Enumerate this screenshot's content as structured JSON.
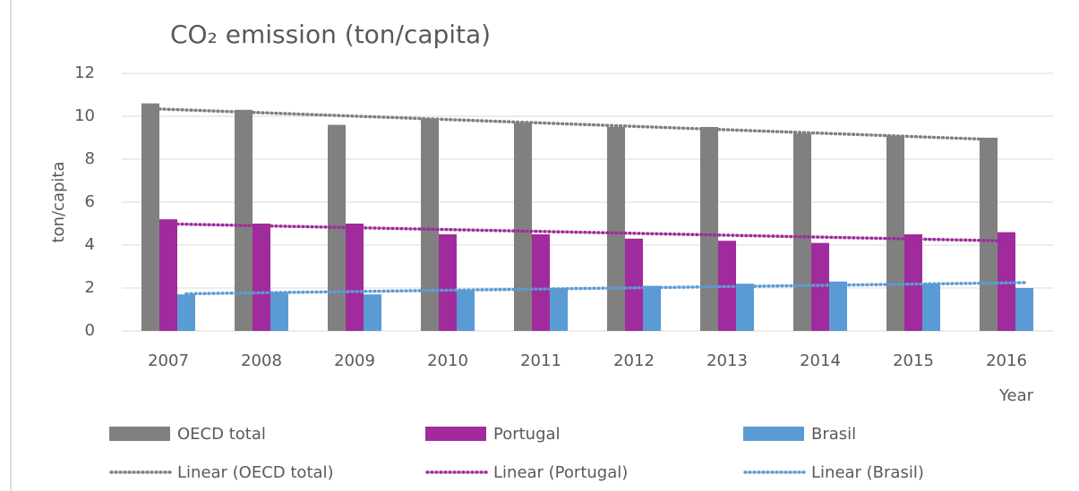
{
  "chart_data": {
    "type": "bar",
    "title": "CO₂ emission (ton/capita)",
    "y_label": "ton/capita",
    "x_label": "Year",
    "categories": [
      "2007",
      "2008",
      "2009",
      "2010",
      "2011",
      "2012",
      "2013",
      "2014",
      "2015",
      "2016"
    ],
    "series": [
      {
        "name": "OECD total",
        "color": "#808080",
        "values": [
          10.6,
          10.3,
          9.6,
          9.9,
          9.7,
          9.5,
          9.5,
          9.2,
          9.1,
          9.0
        ],
        "trendline": {
          "type": "linear",
          "name": "Linear (OECD total)"
        }
      },
      {
        "name": "Portugal",
        "color": "#a02b9c",
        "values": [
          5.2,
          5.0,
          5.0,
          4.5,
          4.5,
          4.3,
          4.2,
          4.1,
          4.5,
          4.6
        ],
        "trendline": {
          "type": "linear",
          "name": "Linear (Portugal)"
        }
      },
      {
        "name": "Brasil",
        "color": "#5b9bd5",
        "values": [
          1.7,
          1.8,
          1.7,
          1.9,
          2.0,
          2.1,
          2.2,
          2.3,
          2.2,
          2.0
        ],
        "trendline": {
          "type": "linear",
          "name": "Linear (Brasil)"
        }
      }
    ],
    "ylim": [
      0,
      12
    ],
    "yticks": [
      0,
      2,
      4,
      6,
      8,
      10,
      12
    ],
    "grid": true,
    "legend": "bottom"
  }
}
